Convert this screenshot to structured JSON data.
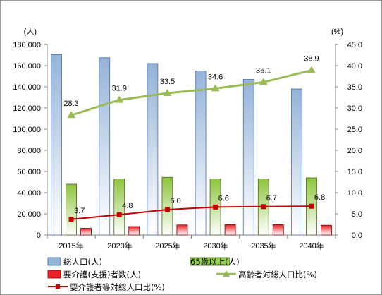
{
  "chart_data": {
    "type": "bar",
    "categories": [
      "2015年",
      "2020年",
      "2025年",
      "2030年",
      "2035年",
      "2040年"
    ],
    "series": [
      {
        "name": "総人口(人)",
        "type": "bar",
        "axis": "left",
        "values": [
          170500,
          167500,
          162000,
          155000,
          147000,
          138000
        ]
      },
      {
        "name": "65歳以上(人)",
        "type": "bar",
        "axis": "left",
        "values": [
          48000,
          53000,
          54500,
          53000,
          53000,
          54000
        ]
      },
      {
        "name": "要介護(支援)者数(人)",
        "type": "bar",
        "axis": "left",
        "values": [
          6300,
          8000,
          9500,
          9700,
          9700,
          9200
        ]
      },
      {
        "name": "高齢者対総人口比(%)",
        "type": "line",
        "axis": "right",
        "values": [
          28.3,
          31.9,
          33.5,
          34.6,
          36.1,
          38.9
        ],
        "labels": [
          "28.3",
          "31.9",
          "33.5",
          "34.6",
          "36.1",
          "38.9"
        ]
      },
      {
        "name": "要介護者等対総人口比(%)",
        "type": "line",
        "axis": "right",
        "values": [
          3.7,
          4.8,
          6.0,
          6.6,
          6.7,
          6.8
        ],
        "labels": [
          "3.7",
          "4.8",
          "6.0",
          "6.6",
          "6.7",
          "6.8"
        ]
      }
    ],
    "left_axis": {
      "unit": "(人)",
      "ylim": [
        0,
        180000
      ],
      "ticks": [
        "0",
        "20,000",
        "40,000",
        "60,000",
        "80,000",
        "100,000",
        "120,000",
        "140,000",
        "160,000",
        "180,000"
      ]
    },
    "right_axis": {
      "unit": "(%)",
      "ylim": [
        0,
        45
      ],
      "ticks": [
        "0.0",
        "5.0",
        "10.0",
        "15.0",
        "20.0",
        "25.0",
        "30.0",
        "35.0",
        "40.0",
        "45.0"
      ]
    },
    "grid": false,
    "legend_position": "bottom",
    "colors": {
      "total_bar": "#95b3d7",
      "elderly_bar": "#92d050",
      "care_bar": "#e8242a",
      "elderly_ratio_line": "#9bbb59",
      "care_ratio_line": "#c00000"
    }
  }
}
